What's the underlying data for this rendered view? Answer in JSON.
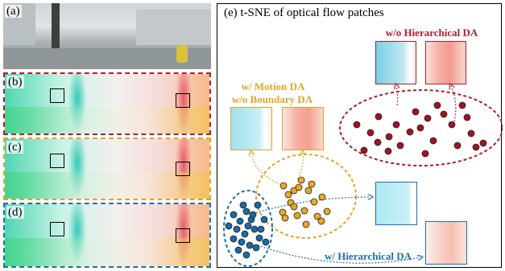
{
  "left": {
    "label_a": "(a)",
    "label_b": "(b)",
    "label_c": "(c)",
    "label_d": "(d)"
  },
  "right": {
    "title": "(e) t-SNE of optical flow patches",
    "ann_red": "w/o Hierarchical DA",
    "ann_orange_1": "w/ Motion DA",
    "ann_orange_2": "w/o Boundary DA",
    "ann_blue": "w/ Hierarchical DA"
  },
  "colors": {
    "red": "#b01e2d",
    "orange": "#e3a524",
    "blue": "#1f6fa8",
    "red_point": "#9e1522",
    "orange_point": "#eaa728",
    "blue_point": "#1a6aa3"
  }
}
